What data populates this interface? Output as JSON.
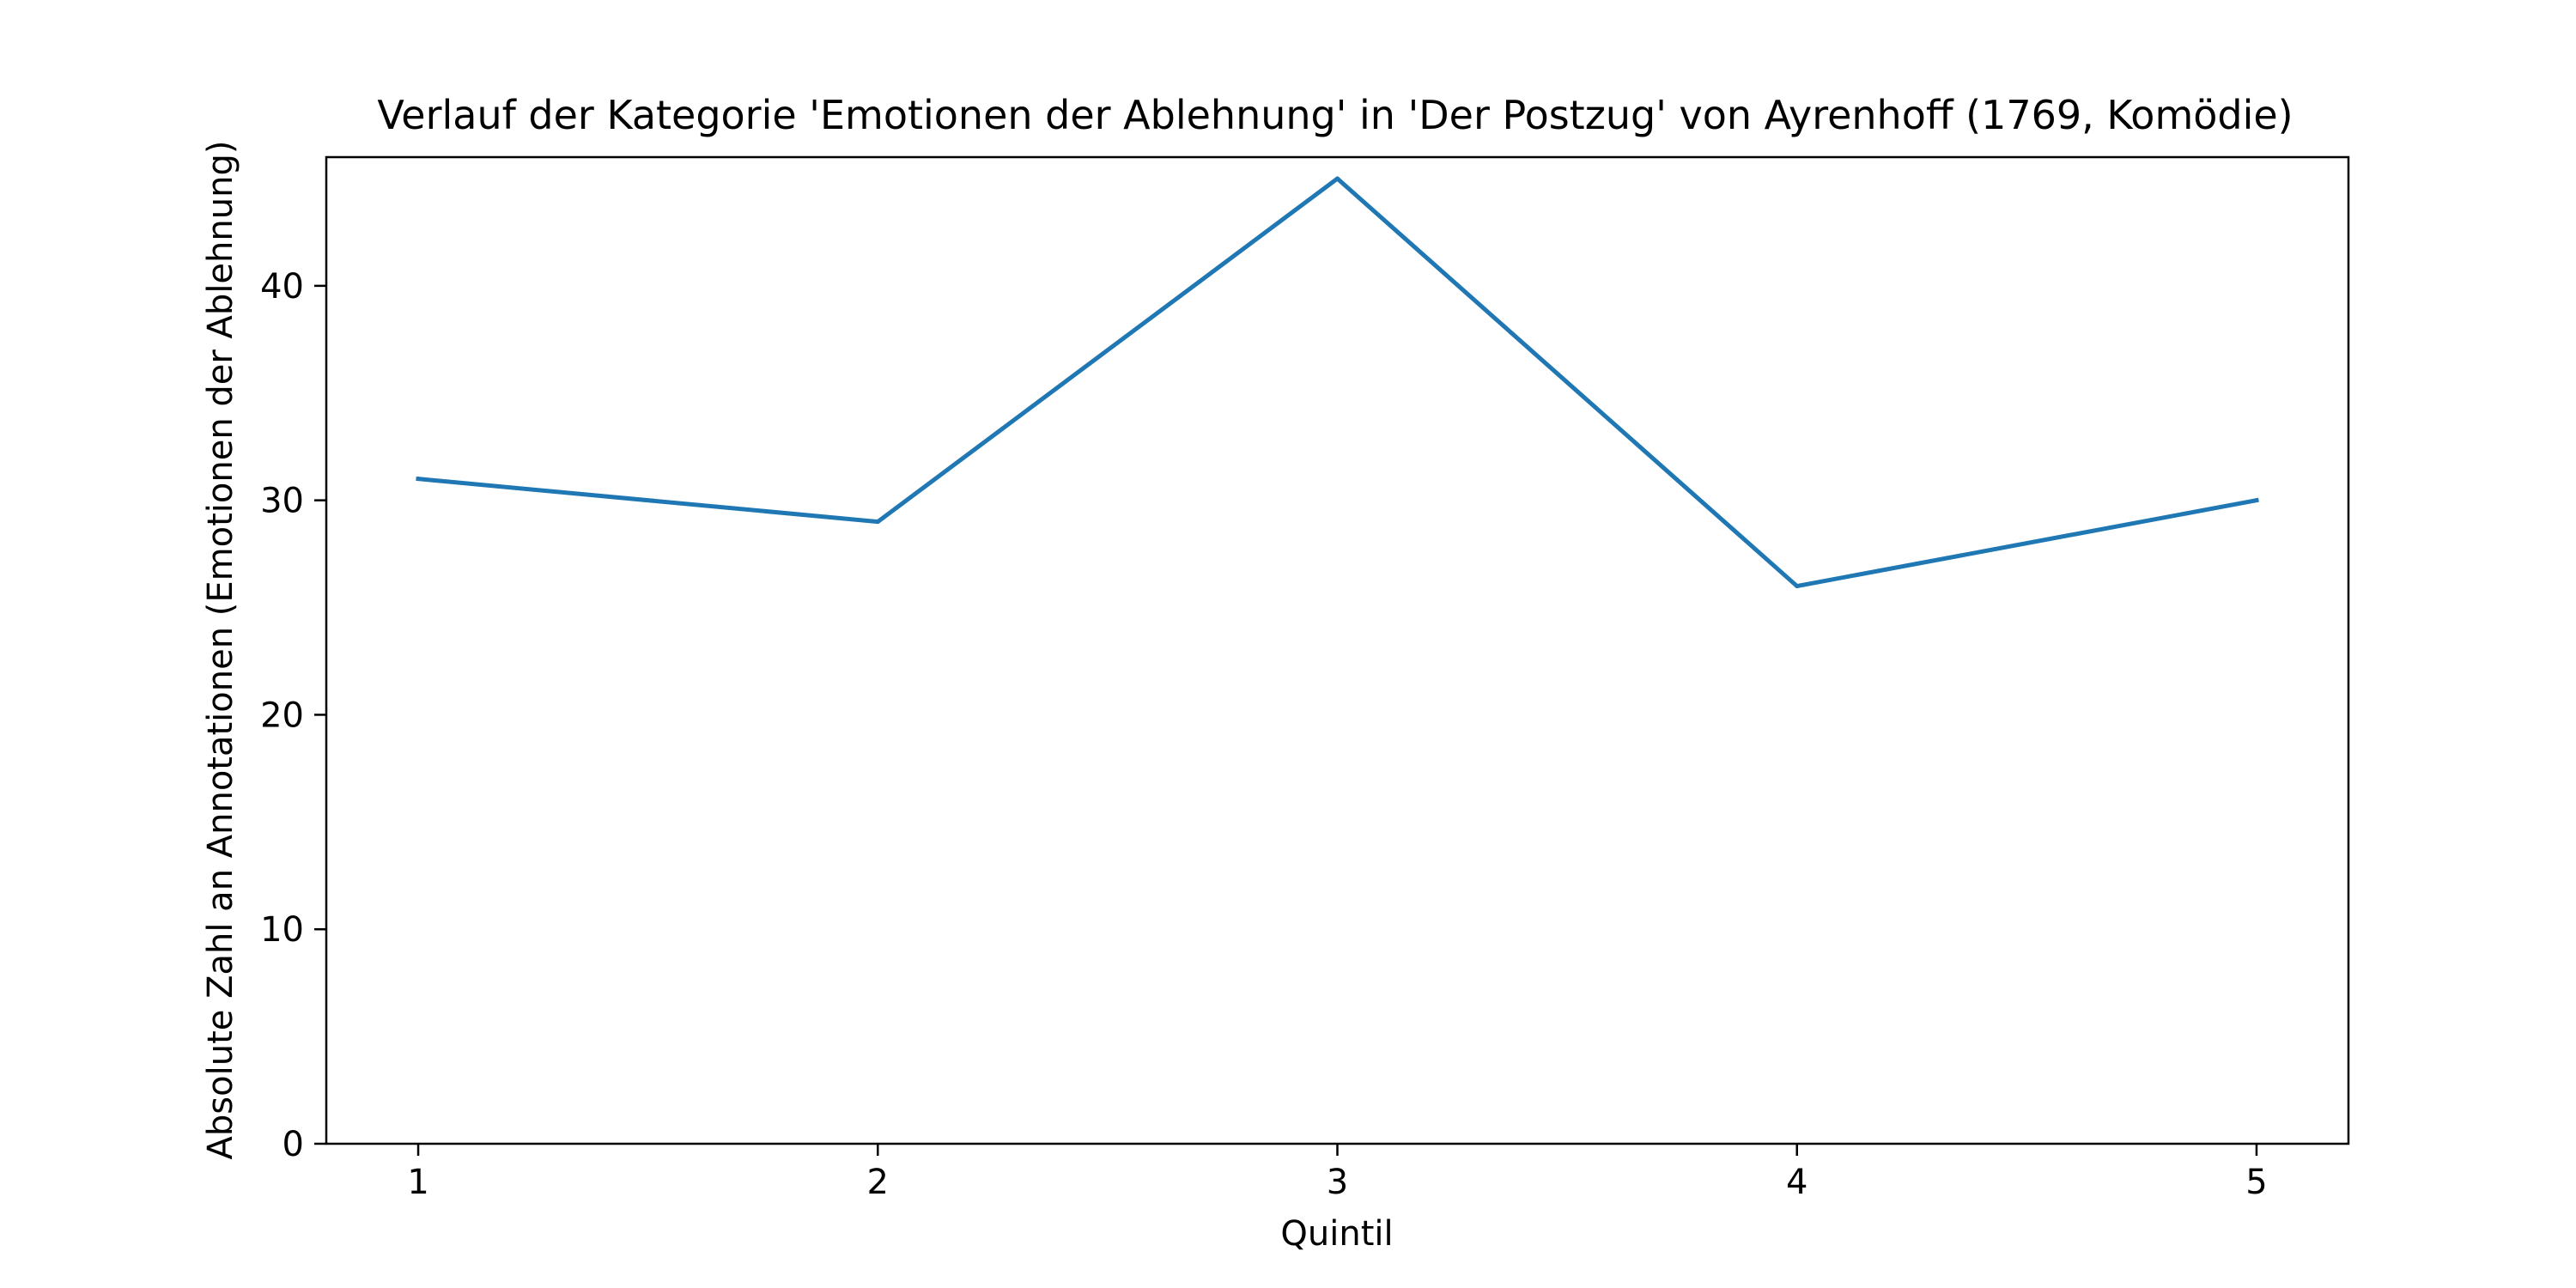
{
  "chart_data": {
    "type": "line",
    "title": "Verlauf der Kategorie 'Emotionen der Ablehnung' in 'Der Postzug' von Ayrenhoff (1769, Komödie)",
    "xlabel": "Quintil",
    "ylabel": "Absolute Zahl an Annotationen (Emotionen der Ablehnung)",
    "x": [
      1,
      2,
      3,
      4,
      5
    ],
    "x_tick_labels": [
      "1",
      "2",
      "3",
      "4",
      "5"
    ],
    "y_ticks": [
      0,
      10,
      20,
      30,
      40
    ],
    "y_tick_labels": [
      "0",
      "10",
      "20",
      "30",
      "40"
    ],
    "xlim": [
      0.8,
      5.2
    ],
    "ylim": [
      0,
      46
    ],
    "grid": false,
    "series": [
      {
        "values": [
          31,
          29,
          45,
          26,
          30
        ],
        "color": "#1f77b4"
      }
    ]
  }
}
